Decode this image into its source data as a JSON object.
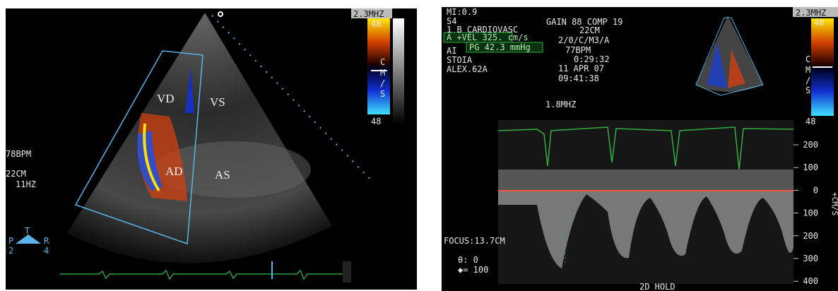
{
  "left": {
    "freq": "2.3MHZ",
    "scale_top": "48",
    "scale_unit": [
      "C",
      "M",
      "/",
      "S"
    ],
    "scale_bottom": "48",
    "labels": [
      "VD",
      "VS",
      "AD",
      "AS"
    ],
    "bpm": "78BPM",
    "depth": "22CM",
    "rate": "11HZ",
    "probe": {
      "top": "T",
      "left": "P",
      "right": "R",
      "bottom_left": "2",
      "bottom_right": "4"
    }
  },
  "right": {
    "mi": "MI:0.9",
    "probe": "S4",
    "preset": "1 B CARDIOVASC",
    "velocity": "A +VEL 325. cm/s",
    "gradient": "PG 42.3 mmHg",
    "ai": "AI",
    "name": "STOIA",
    "patient": "ALEX.62A",
    "gain": "GAIN 88 COMP 19",
    "depth": "22CM",
    "mode": "2/0/C/M3/A",
    "bpm": "77BPM",
    "time": "0:29:32",
    "date": "11 APR  07",
    "clock": "09:41:38",
    "doppler_freq": "1.8MHZ",
    "freq": "2.3MHZ",
    "scale_top": "48",
    "scale_unit": [
      "C",
      "M",
      "/",
      "S"
    ],
    "scale_bottom": "48",
    "velocity_scale": [
      "200",
      "100",
      "0",
      "100",
      "200",
      "300",
      "400"
    ],
    "velocity_unit": "+CM/S",
    "focus": "FOCUS:13.7CM",
    "angle": "θ: 0",
    "sweep": "◆= 100",
    "status": "2D HOLD"
  }
}
